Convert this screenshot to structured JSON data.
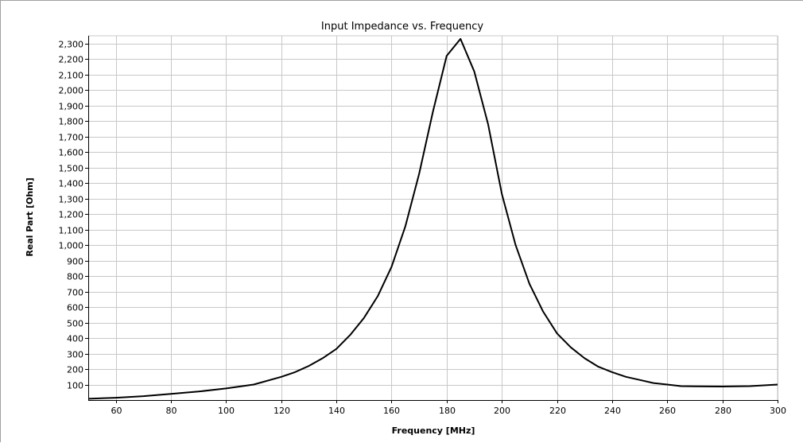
{
  "chart_data": {
    "type": "line",
    "title": "Input Impedance vs. Frequency",
    "xlabel": "Frequency [MHz]",
    "ylabel": "Real Part [Ohm]",
    "xlim": [
      50,
      300
    ],
    "ylim": [
      0,
      2350
    ],
    "grid": true,
    "legend": "none",
    "x_ticks": [
      60,
      80,
      100,
      120,
      140,
      160,
      180,
      200,
      220,
      240,
      260,
      280,
      300
    ],
    "x_tick_labels": [
      "60",
      "80",
      "100",
      "120",
      "140",
      "160",
      "180",
      "200",
      "220",
      "240",
      "260",
      "280",
      "300"
    ],
    "y_ticks": [
      100,
      200,
      300,
      400,
      500,
      600,
      700,
      800,
      900,
      1000,
      1100,
      1200,
      1300,
      1400,
      1500,
      1600,
      1700,
      1800,
      1900,
      2000,
      2100,
      2200,
      2300
    ],
    "y_tick_labels": [
      "100",
      "200",
      "300",
      "400",
      "500",
      "600",
      "700",
      "800",
      "900",
      "1,000",
      "1,100",
      "1,200",
      "1,300",
      "1,400",
      "1,500",
      "1,600",
      "1,700",
      "1,800",
      "1,900",
      "2,000",
      "2,100",
      "2,200",
      "2,300"
    ],
    "series": [
      {
        "color": "#000000",
        "x": [
          50,
          60,
          70,
          80,
          90,
          100,
          110,
          120,
          125,
          130,
          135,
          140,
          145,
          150,
          155,
          160,
          165,
          170,
          175,
          180,
          185,
          190,
          195,
          200,
          205,
          210,
          215,
          220,
          225,
          230,
          235,
          240,
          245,
          250,
          255,
          260,
          265,
          270,
          280,
          290,
          300
        ],
        "y": [
          8,
          15,
          25,
          40,
          55,
          75,
          100,
          150,
          180,
          220,
          270,
          330,
          420,
          530,
          670,
          860,
          1120,
          1460,
          1860,
          2220,
          2330,
          2120,
          1780,
          1330,
          1000,
          750,
          570,
          430,
          340,
          270,
          215,
          180,
          150,
          130,
          110,
          100,
          90,
          88,
          87,
          90,
          100
        ]
      }
    ]
  }
}
